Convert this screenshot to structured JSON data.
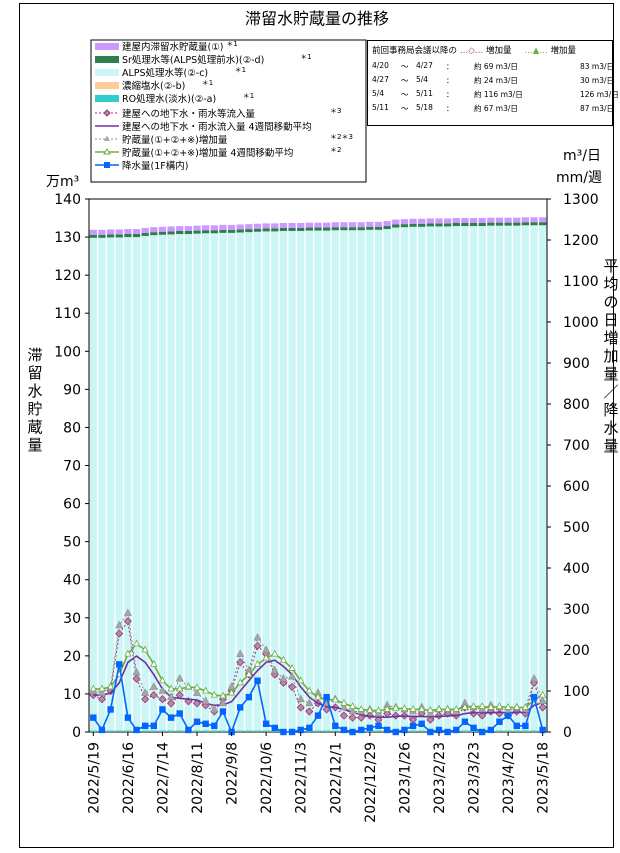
{
  "chart_data": {
    "type": "bar",
    "title": "滞留水貯蔵量の推移",
    "y_left_unit": "万m³",
    "y_left_label": "滞留水貯蔵量",
    "y_right_unit_top": "m³/日",
    "y_right_unit_bottom": "mm/週",
    "y_right_label": "平均の日増加量／降水量",
    "ylim_left": [
      0,
      140
    ],
    "ylim_right": [
      0,
      1300
    ],
    "y_left_ticks": [
      0,
      10,
      20,
      30,
      40,
      50,
      60,
      70,
      80,
      90,
      100,
      110,
      120,
      130,
      140
    ],
    "y_right_ticks": [
      0,
      100,
      200,
      300,
      400,
      500,
      600,
      700,
      800,
      900,
      1000,
      1100,
      1200,
      1300
    ],
    "x_tick_labels": [
      "2022/5/19",
      "2022/6/16",
      "2022/7/14",
      "2022/8/11",
      "2022/9/8",
      "2022/10/6",
      "2022/11/3",
      "2022/12/1",
      "2022/12/29",
      "2023/1/26",
      "2023/2/23",
      "2023/3/23",
      "2023/4/20",
      "2023/5/18"
    ],
    "categories": [
      "2022/5/19",
      "2022/5/26",
      "2022/6/2",
      "2022/6/9",
      "2022/6/16",
      "2022/6/23",
      "2022/6/30",
      "2022/7/7",
      "2022/7/14",
      "2022/7/21",
      "2022/7/28",
      "2022/8/4",
      "2022/8/11",
      "2022/8/18",
      "2022/8/25",
      "2022/9/1",
      "2022/9/8",
      "2022/9/15",
      "2022/9/22",
      "2022/9/29",
      "2022/10/6",
      "2022/10/13",
      "2022/10/20",
      "2022/10/27",
      "2022/11/3",
      "2022/11/10",
      "2022/11/17",
      "2022/11/24",
      "2022/12/1",
      "2022/12/8",
      "2022/12/15",
      "2022/12/22",
      "2022/12/29",
      "2023/1/5",
      "2023/1/12",
      "2023/1/19",
      "2023/1/26",
      "2023/2/2",
      "2023/2/9",
      "2023/2/16",
      "2023/2/23",
      "2023/3/2",
      "2023/3/9",
      "2023/3/16",
      "2023/3/23",
      "2023/3/30",
      "2023/4/6",
      "2023/4/13",
      "2023/4/20",
      "2023/4/27",
      "2023/5/4",
      "2023/5/11",
      "2023/5/18"
    ],
    "stack_series": [
      {
        "name": "建屋内滞留水貯蔵量(①)",
        "color": "#cc99ff",
        "note": "＊1",
        "values": [
          1.3,
          1.3,
          1.3,
          1.3,
          1.3,
          1.3,
          1.3,
          1.3,
          1.3,
          1.3,
          1.3,
          1.3,
          1.3,
          1.3,
          1.3,
          1.3,
          1.3,
          1.3,
          1.3,
          1.3,
          1.3,
          1.3,
          1.3,
          1.3,
          1.3,
          1.3,
          1.3,
          1.3,
          1.3,
          1.3,
          1.3,
          1.3,
          1.3,
          1.3,
          1.3,
          1.3,
          1.3,
          1.3,
          1.3,
          1.3,
          1.3,
          1.3,
          1.3,
          1.3,
          1.3,
          1.3,
          1.3,
          1.3,
          1.3,
          1.3,
          1.3,
          1.3,
          1.3
        ]
      },
      {
        "name": "Sr処理水等(ALPS処理前水)(②-d)",
        "color": "#2e7d4f",
        "note": "＊1",
        "values": [
          0.8,
          0.8,
          0.8,
          0.8,
          0.8,
          0.8,
          0.8,
          0.8,
          0.8,
          0.8,
          0.8,
          0.8,
          0.8,
          0.8,
          0.8,
          0.8,
          0.8,
          0.8,
          0.8,
          0.8,
          0.8,
          0.8,
          0.8,
          0.8,
          0.8,
          0.8,
          0.8,
          0.8,
          0.8,
          0.8,
          0.8,
          0.8,
          0.8,
          0.8,
          0.8,
          0.8,
          0.8,
          0.8,
          0.8,
          0.8,
          0.8,
          0.8,
          0.8,
          0.8,
          0.8,
          0.8,
          0.8,
          0.8,
          0.8,
          0.8,
          0.8,
          0.8,
          0.8
        ]
      },
      {
        "name": "ALPS処理水等(②-c)",
        "color": "#ccf5f5",
        "note": "＊1",
        "values": [
          129.3,
          129.3,
          129.4,
          129.4,
          129.5,
          129.5,
          129.8,
          130.0,
          130.1,
          130.2,
          130.3,
          130.3,
          130.4,
          130.5,
          130.5,
          130.6,
          130.6,
          130.7,
          130.8,
          130.9,
          131.0,
          131.0,
          131.1,
          131.1,
          131.1,
          131.2,
          131.2,
          131.2,
          131.3,
          131.3,
          131.3,
          131.3,
          131.4,
          131.4,
          131.6,
          132.0,
          132.1,
          132.2,
          132.2,
          132.3,
          132.3,
          132.3,
          132.4,
          132.4,
          132.4,
          132.4,
          132.5,
          132.5,
          132.5,
          132.5,
          132.6,
          132.6,
          132.6
        ]
      },
      {
        "name": "濃縮塩水(②-b)",
        "color": "#ffcc99",
        "note": "＊1",
        "values": [
          0.1,
          0.1,
          0.1,
          0.1,
          0.1,
          0.1,
          0.1,
          0.1,
          0.1,
          0.1,
          0.1,
          0.1,
          0.1,
          0.1,
          0.1,
          0.1,
          0.1,
          0.1,
          0.1,
          0.1,
          0.1,
          0.1,
          0.1,
          0.1,
          0.1,
          0.1,
          0.1,
          0.1,
          0.1,
          0.1,
          0.1,
          0.1,
          0.1,
          0.1,
          0.1,
          0.1,
          0.1,
          0.1,
          0.1,
          0.1,
          0.1,
          0.1,
          0.1,
          0.1,
          0.1,
          0.1,
          0.1,
          0.1,
          0.1,
          0.1,
          0.1,
          0.1,
          0.1
        ]
      },
      {
        "name": "RO処理水(淡水)(②-a)",
        "color": "#33cccc",
        "note": "＊1",
        "values": [
          0.4,
          0.4,
          0.4,
          0.4,
          0.4,
          0.4,
          0.4,
          0.4,
          0.4,
          0.4,
          0.4,
          0.4,
          0.4,
          0.4,
          0.4,
          0.4,
          0.4,
          0.4,
          0.4,
          0.4,
          0.4,
          0.4,
          0.4,
          0.4,
          0.4,
          0.4,
          0.4,
          0.4,
          0.4,
          0.4,
          0.4,
          0.4,
          0.4,
          0.4,
          0.4,
          0.4,
          0.4,
          0.4,
          0.4,
          0.4,
          0.4,
          0.4,
          0.4,
          0.4,
          0.4,
          0.4,
          0.4,
          0.4,
          0.4,
          0.4,
          0.4,
          0.4,
          0.4
        ]
      }
    ],
    "line_series": [
      {
        "name": "建屋への地下水・雨水等流入量",
        "note": "＊3",
        "color": "#99337a",
        "marker": "diamond",
        "dash": "2,2",
        "values": [
          90,
          80,
          100,
          240,
          270,
          130,
          80,
          90,
          80,
          70,
          90,
          75,
          70,
          65,
          50,
          80,
          100,
          170,
          140,
          210,
          190,
          140,
          120,
          110,
          60,
          50,
          70,
          55,
          60,
          40,
          35,
          35,
          40,
          30,
          45,
          40,
          40,
          30,
          45,
          30,
          40,
          45,
          40,
          60,
          45,
          40,
          50,
          45,
          40,
          50,
          45,
          120,
          60
        ]
      },
      {
        "name": "建屋への地下水・雨水流入量 4週間移動平均",
        "color": "#7030a0",
        "marker": "none",
        "dash": "",
        "values": [
          90,
          90,
          95,
          120,
          170,
          185,
          170,
          140,
          105,
          85,
          82,
          80,
          78,
          70,
          65,
          66,
          74,
          100,
          125,
          150,
          170,
          175,
          160,
          140,
          110,
          85,
          70,
          62,
          60,
          55,
          48,
          42,
          38,
          36,
          36,
          38,
          39,
          38,
          38,
          37,
          38,
          39,
          40,
          45,
          47,
          47,
          47,
          48,
          47,
          48,
          48,
          65,
          72
        ]
      },
      {
        "name": "貯蔵量(①+②+※)増加量",
        "note": "＊2＊3",
        "color": "#8c8c8c",
        "marker": "triangle",
        "dash": "2,2",
        "values": [
          100,
          95,
          110,
          260,
          290,
          145,
          95,
          110,
          100,
          85,
          130,
          110,
          95,
          75,
          55,
          70,
          110,
          190,
          150,
          230,
          200,
          150,
          130,
          135,
          80,
          70,
          95,
          70,
          80,
          60,
          50,
          50,
          55,
          45,
          65,
          60,
          55,
          50,
          60,
          45,
          55,
          55,
          50,
          70,
          60,
          55,
          65,
          60,
          50,
          60,
          55,
          130,
          75
        ]
      },
      {
        "name": "貯蔵量(①+②+※)増加量 4週間移動平均",
        "note": "＊2",
        "color": "#70ad47",
        "marker": "triangle-open",
        "dash": "",
        "values": [
          105,
          105,
          110,
          140,
          190,
          215,
          200,
          165,
          125,
          105,
          105,
          110,
          108,
          100,
          90,
          88,
          95,
          120,
          140,
          165,
          180,
          190,
          175,
          155,
          125,
          100,
          85,
          80,
          78,
          70,
          62,
          55,
          53,
          52,
          55,
          58,
          57,
          55,
          55,
          53,
          55,
          55,
          55,
          60,
          62,
          62,
          60,
          62,
          60,
          60,
          60,
          78,
          90
        ]
      },
      {
        "name": "降水量(1F構内)",
        "color": "#0066ff",
        "marker": "square",
        "dash": "",
        "values": [
          35,
          5,
          55,
          165,
          35,
          5,
          15,
          15,
          55,
          35,
          45,
          5,
          25,
          20,
          15,
          50,
          0,
          60,
          85,
          125,
          20,
          10,
          0,
          0,
          5,
          10,
          40,
          85,
          15,
          5,
          0,
          5,
          10,
          15,
          5,
          0,
          5,
          15,
          20,
          0,
          5,
          0,
          5,
          25,
          10,
          0,
          5,
          25,
          40,
          15,
          15,
          85,
          5
        ]
      }
    ],
    "increase_table": {
      "header": "前回事務局会議以降の",
      "legend_diamond": "増加量",
      "legend_triangle": "増加量",
      "rows": [
        {
          "from": "4/20",
          "sep": "～",
          "to": "4/27",
          "colon": "：",
          "inflow": "約 69 m3/日",
          "storage": "83 m3/日"
        },
        {
          "from": "4/27",
          "sep": "～",
          "to": "5/4",
          "colon": "：",
          "inflow": "約 24 m3/日",
          "storage": "30 m3/日"
        },
        {
          "from": "5/4",
          "sep": "～",
          "to": "5/11",
          "colon": "：",
          "inflow": "約 116 m3/日",
          "storage": "126 m3/日"
        },
        {
          "from": "5/11",
          "sep": "～",
          "to": "5/18",
          "colon": "：",
          "inflow": "約 67 m3/日",
          "storage": "87 m3/日"
        }
      ]
    }
  }
}
